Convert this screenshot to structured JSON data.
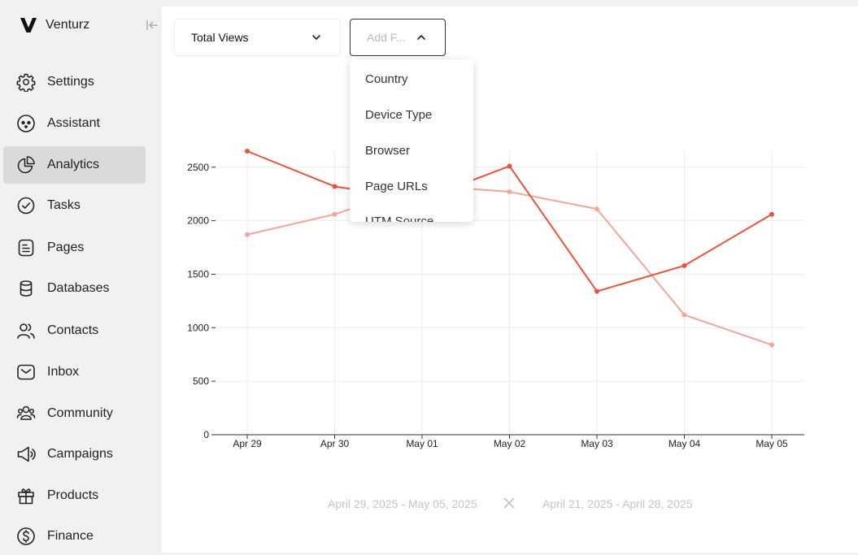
{
  "brand": {
    "name": "Venturz"
  },
  "sidebar": {
    "items": [
      {
        "label": "Settings",
        "icon": "gear-icon"
      },
      {
        "label": "Assistant",
        "icon": "assistant-icon"
      },
      {
        "label": "Analytics",
        "icon": "pie-chart-icon",
        "active": true
      },
      {
        "label": "Tasks",
        "icon": "check-circle-icon"
      },
      {
        "label": "Pages",
        "icon": "document-icon"
      },
      {
        "label": "Databases",
        "icon": "database-icon"
      },
      {
        "label": "Contacts",
        "icon": "contacts-icon"
      },
      {
        "label": "Inbox",
        "icon": "envelope-icon"
      },
      {
        "label": "Community",
        "icon": "community-icon"
      },
      {
        "label": "Campaigns",
        "icon": "megaphone-icon"
      },
      {
        "label": "Products",
        "icon": "gift-icon"
      },
      {
        "label": "Finance",
        "icon": "dollar-circle-icon"
      }
    ]
  },
  "toolbar": {
    "metric_value": "Total Views",
    "filter_placeholder": "Add F...",
    "filter_options": [
      "Country",
      "Device Type",
      "Browser",
      "Page URLs",
      "UTM Source"
    ]
  },
  "footer": {
    "range_current": "April 29, 2025 - May 05, 2025",
    "range_previous": "April 21, 2025 - April 28, 2025"
  },
  "colors": {
    "current": "#e8533a",
    "previous": "#f3a697",
    "grid": "#ececec",
    "axis": "#333333"
  },
  "chart_data": {
    "type": "line",
    "categories": [
      "Apr 29",
      "Apr 30",
      "May 01",
      "May 02",
      "May 03",
      "May 04",
      "May 05"
    ],
    "series": [
      {
        "values": [
          2650,
          2320,
          2200,
          2510,
          1340,
          1580,
          2060
        ],
        "color": "#e8533a"
      },
      {
        "values": [
          1870,
          2060,
          2330,
          2270,
          2110,
          1120,
          840
        ],
        "color": "#f3a697"
      }
    ],
    "yticks": [
      0,
      500,
      1000,
      1500,
      2000,
      2500
    ],
    "ylim": [
      0,
      2650
    ],
    "grid": true,
    "legend": "none"
  }
}
